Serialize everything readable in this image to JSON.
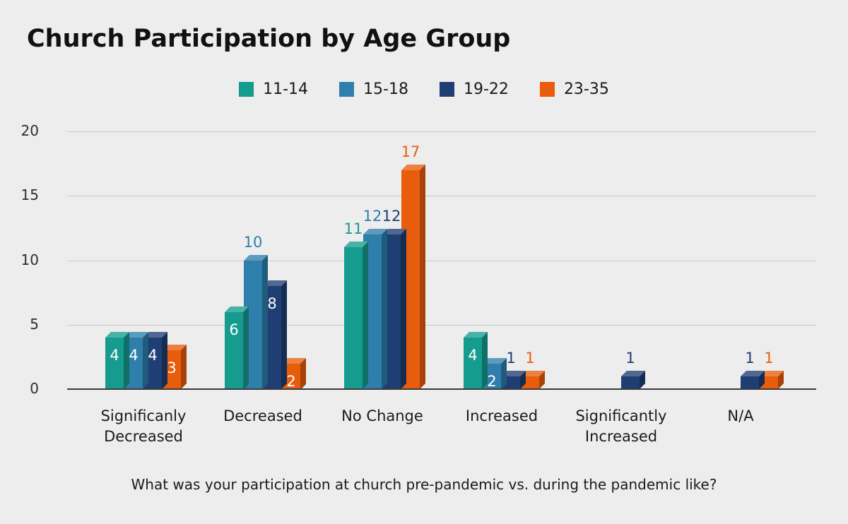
{
  "chart_data": {
    "type": "bar",
    "style": "3d-column-grouped",
    "title": "Church Participation by Age Group",
    "caption": "What was your participation at church pre-pandemic vs. during the pandemic like?",
    "background_color": "#ededed",
    "grid_color": "#c9c9c9",
    "axis_color": "#3a3a3a",
    "text_color": "#1a1a1a",
    "legend_position": "top-center",
    "grid": true,
    "ylim": [
      0,
      20
    ],
    "y_ticks": [
      0,
      5,
      10,
      15,
      20
    ],
    "categories": [
      "Significanly Decreased",
      "Decreased",
      "No Change",
      "Increased",
      "Significantly Increased",
      "N/A"
    ],
    "series": [
      {
        "name": "11-14",
        "color": "#169c8f",
        "values": [
          4,
          6,
          11,
          4,
          0,
          0
        ],
        "value_label_pos": [
          "in",
          "in",
          "above",
          "in",
          null,
          null
        ]
      },
      {
        "name": "15-18",
        "color": "#2e7fab",
        "values": [
          4,
          10,
          12,
          2,
          0,
          0
        ],
        "value_label_pos": [
          "in",
          "above",
          "above",
          "in",
          null,
          null
        ]
      },
      {
        "name": "19-22",
        "color": "#1f3e73",
        "values": [
          4,
          8,
          12,
          1,
          1,
          1
        ],
        "value_label_pos": [
          "in",
          "in",
          "above",
          "above",
          "above",
          "above"
        ]
      },
      {
        "name": "23-35",
        "color": "#e85d0c",
        "values": [
          3,
          2,
          17,
          1,
          0,
          1
        ],
        "value_label_pos": [
          "in",
          "in",
          "above",
          "above",
          null,
          "above"
        ]
      }
    ]
  }
}
